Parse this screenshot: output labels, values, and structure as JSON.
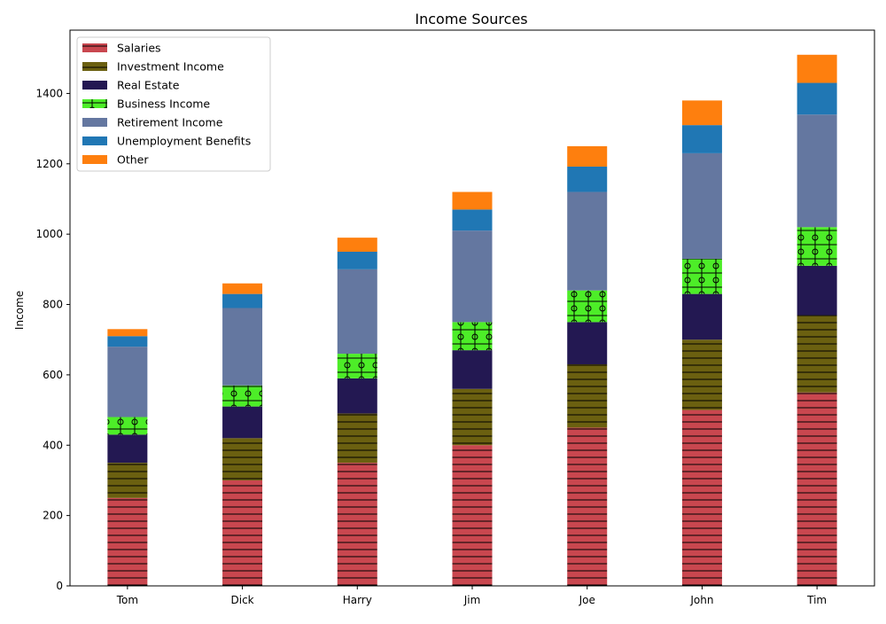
{
  "chart_data": {
    "type": "bar",
    "stacked": true,
    "title": "Income Sources",
    "xlabel": "",
    "ylabel": "Income",
    "ylim": [
      0,
      1580
    ],
    "yticks": [
      0,
      200,
      400,
      600,
      800,
      1000,
      1200,
      1400
    ],
    "categories": [
      "Tom",
      "Dick",
      "Harry",
      "Jim",
      "Joe",
      "John",
      "Tim"
    ],
    "legend_position": "top-left",
    "grid": false,
    "series": [
      {
        "name": "Salaries",
        "color": "#c9474f",
        "hatch": "horizontal-lines",
        "values": [
          250,
          300,
          350,
          400,
          450,
          500,
          550
        ]
      },
      {
        "name": "Investment Income",
        "color": "#6b6010",
        "hatch": "horizontal-lines",
        "values": [
          100,
          120,
          140,
          160,
          180,
          200,
          220
        ]
      },
      {
        "name": "Real Estate",
        "color": "#231852",
        "hatch": "none",
        "values": [
          80,
          90,
          100,
          110,
          120,
          130,
          140
        ]
      },
      {
        "name": "Business Income",
        "color": "#4ded28",
        "hatch": "grid-circles",
        "values": [
          50,
          60,
          70,
          80,
          90,
          100,
          110
        ]
      },
      {
        "name": "Retirement Income",
        "color": "#6477a0",
        "hatch": "none",
        "values": [
          200,
          220,
          240,
          260,
          280,
          300,
          320
        ]
      },
      {
        "name": "Unemployment Benefits",
        "color": "#2077b4",
        "hatch": "none",
        "values": [
          30,
          40,
          50,
          60,
          72,
          80,
          90
        ]
      },
      {
        "name": "Other",
        "color": "#fe7f0e",
        "hatch": "none",
        "values": [
          20,
          30,
          40,
          50,
          58,
          70,
          80
        ]
      }
    ]
  }
}
